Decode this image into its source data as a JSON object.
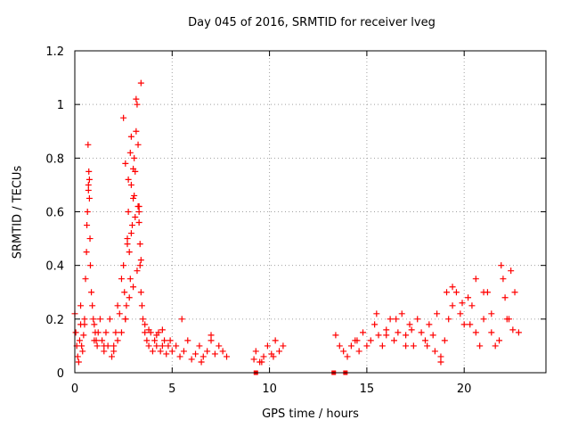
{
  "chart_data": {
    "type": "scatter",
    "title": "Day 045 of 2016, SRMTID for receiver lveg",
    "xlabel": "GPS time / hours",
    "ylabel": "SRMTID / TECUs",
    "xlim": [
      0,
      24.2
    ],
    "ylim": [
      0,
      1.2
    ],
    "xticks": [
      0,
      5,
      10,
      15,
      20
    ],
    "xtick_labels": [
      "0",
      "5",
      "10",
      "15",
      "20"
    ],
    "yticks": [
      0,
      0.2,
      0.4,
      0.6,
      0.8,
      1,
      1.2
    ],
    "ytick_labels": [
      "0",
      "0.2",
      "0.4",
      "0.6",
      "0.8",
      "1",
      "1.2"
    ],
    "grid": true,
    "marker": "+",
    "color": "#ff0000",
    "series": [
      {
        "name": "SRMTID",
        "x": [
          0.0,
          0.05,
          0.1,
          0.15,
          0.2,
          0.25,
          0.3,
          0.35,
          0.4,
          0.45,
          0.5,
          0.55,
          0.6,
          0.62,
          0.65,
          0.7,
          0.72,
          0.75,
          0.78,
          0.8,
          0.85,
          0.9,
          0.95,
          1.0,
          1.05,
          1.1,
          1.15,
          1.2,
          1.3,
          1.4,
          1.5,
          1.6,
          1.7,
          1.8,
          1.9,
          2.0,
          2.1,
          2.2,
          2.3,
          2.4,
          2.5,
          2.55,
          2.6,
          2.65,
          2.7,
          2.75,
          2.8,
          2.85,
          2.9,
          2.95,
          3.0,
          3.05,
          3.1,
          3.15,
          3.2,
          3.25,
          3.3,
          3.35,
          3.4,
          3.45,
          3.5,
          3.6,
          3.7,
          3.8,
          3.9,
          4.0,
          4.1,
          4.2,
          4.3,
          4.4,
          4.5,
          4.6,
          4.7,
          4.8,
          4.9,
          5.0,
          5.2,
          5.4,
          5.6,
          5.8,
          6.0,
          6.2,
          6.4,
          6.6,
          6.8,
          7.0,
          7.2,
          7.4,
          7.6,
          7.8,
          9.2,
          9.3,
          9.5,
          9.7,
          9.9,
          10.1,
          10.3,
          10.5,
          10.7,
          13.4,
          13.6,
          13.8,
          14.0,
          14.2,
          14.4,
          14.6,
          14.8,
          15.0,
          15.2,
          15.4,
          15.6,
          15.8,
          16.0,
          16.2,
          16.4,
          16.6,
          16.8,
          17.0,
          17.2,
          17.4,
          17.6,
          17.8,
          18.0,
          18.2,
          18.4,
          18.6,
          18.8,
          19.0,
          19.2,
          19.4,
          19.6,
          19.8,
          20.0,
          20.2,
          20.4,
          20.6,
          20.8,
          21.0,
          21.2,
          21.4,
          21.6,
          21.8,
          22.0,
          22.2,
          22.4,
          22.6,
          22.8,
          0.3,
          0.5,
          1.0,
          1.5,
          2.0,
          2.2,
          2.4,
          2.6,
          2.8,
          3.0,
          3.2,
          3.4,
          2.7,
          2.9,
          3.1,
          3.3,
          0.7,
          0.75,
          0.68,
          2.5,
          2.6,
          2.75,
          3.05,
          3.25,
          3.3,
          3.35,
          3.4,
          3.15,
          2.9,
          2.85,
          3.0,
          19.1,
          19.4,
          19.9,
          20.3,
          20.6,
          21.0,
          21.4,
          21.9,
          22.1,
          22.3,
          22.5,
          16.5,
          17.3,
          18.1,
          18.5,
          18.8,
          15.5,
          16.0,
          17.0,
          14.5,
          10.2,
          9.6,
          6.5,
          7.0,
          5.5,
          4.5,
          4.2,
          3.8,
          3.6
        ],
        "y": [
          0.22,
          0.15,
          0.1,
          0.06,
          0.04,
          0.12,
          0.18,
          0.1,
          0.08,
          0.14,
          0.2,
          0.35,
          0.45,
          0.55,
          0.6,
          0.7,
          0.75,
          0.65,
          0.5,
          0.4,
          0.3,
          0.25,
          0.2,
          0.18,
          0.15,
          0.12,
          0.1,
          0.15,
          0.2,
          0.12,
          0.08,
          0.15,
          0.1,
          0.2,
          0.06,
          0.1,
          0.15,
          0.25,
          0.22,
          0.35,
          0.4,
          0.3,
          0.2,
          0.25,
          0.5,
          0.6,
          0.45,
          0.35,
          0.7,
          0.55,
          0.65,
          0.8,
          0.75,
          0.9,
          1.0,
          0.85,
          0.6,
          0.4,
          0.3,
          0.25,
          0.2,
          0.15,
          0.12,
          0.1,
          0.15,
          0.08,
          0.12,
          0.1,
          0.15,
          0.08,
          0.1,
          0.12,
          0.07,
          0.1,
          0.12,
          0.08,
          0.1,
          0.06,
          0.08,
          0.12,
          0.05,
          0.07,
          0.1,
          0.06,
          0.08,
          0.12,
          0.07,
          0.1,
          0.08,
          0.06,
          0.05,
          0.08,
          0.04,
          0.06,
          0.1,
          0.07,
          0.12,
          0.08,
          0.1,
          0.14,
          0.1,
          0.08,
          0.06,
          0.1,
          0.12,
          0.08,
          0.15,
          0.1,
          0.12,
          0.18,
          0.14,
          0.1,
          0.16,
          0.2,
          0.12,
          0.15,
          0.22,
          0.14,
          0.18,
          0.1,
          0.2,
          0.15,
          0.12,
          0.18,
          0.14,
          0.22,
          0.06,
          0.12,
          0.2,
          0.25,
          0.3,
          0.22,
          0.18,
          0.28,
          0.25,
          0.15,
          0.1,
          0.2,
          0.3,
          0.15,
          0.1,
          0.12,
          0.35,
          0.2,
          0.38,
          0.3,
          0.15,
          0.25,
          0.18,
          0.12,
          0.1,
          0.08,
          0.12,
          0.15,
          0.2,
          0.28,
          0.32,
          0.38,
          0.42,
          0.48,
          0.52,
          0.58,
          0.62,
          0.68,
          0.72,
          0.85,
          0.95,
          0.78,
          0.72,
          0.66,
          0.62,
          0.56,
          0.48,
          1.08,
          1.02,
          0.88,
          0.82,
          0.76,
          0.3,
          0.32,
          0.26,
          0.18,
          0.35,
          0.3,
          0.22,
          0.4,
          0.28,
          0.2,
          0.16,
          0.2,
          0.16,
          0.1,
          0.08,
          0.04,
          0.22,
          0.14,
          0.1,
          0.12,
          0.06,
          0.04,
          0.04,
          0.14,
          0.2,
          0.16,
          0.14,
          0.16,
          0.18
        ],
        "color": "#ff0000"
      }
    ],
    "annotations": [
      {
        "type": "gap-marker",
        "x": [
          9.3,
          13.3,
          13.9
        ],
        "y": [
          0,
          0,
          0
        ]
      }
    ]
  }
}
